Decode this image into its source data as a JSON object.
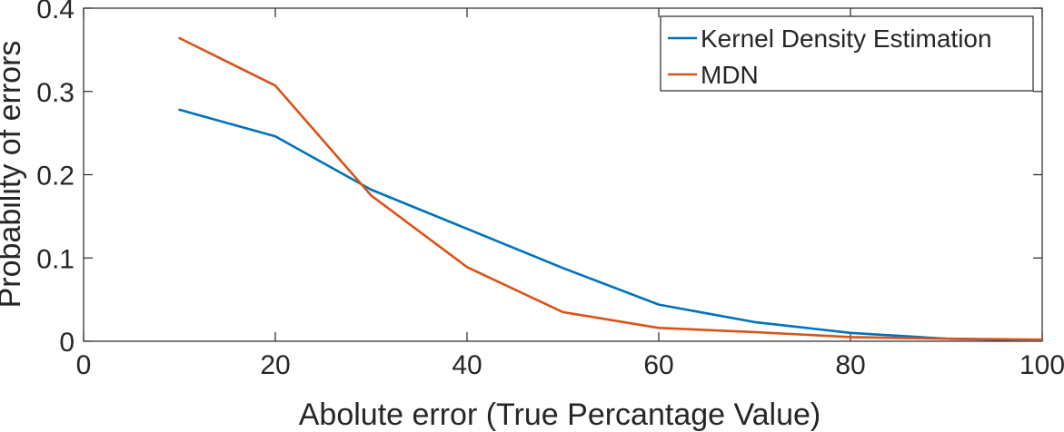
{
  "chart_data": {
    "type": "line",
    "xlabel": "Abolute error (True Percantage Value)",
    "ylabel": "Probability of errors",
    "xlim": [
      0,
      100
    ],
    "ylim": [
      0,
      0.4
    ],
    "xticks": [
      0,
      20,
      40,
      60,
      80,
      100
    ],
    "yticks": [
      0,
      0.1,
      0.2,
      0.3,
      0.4
    ],
    "xtick_labels": [
      "0",
      "20",
      "40",
      "60",
      "80",
      "100"
    ],
    "ytick_labels": [
      "0",
      "0.1",
      "0.2",
      "0.3",
      "0.4"
    ],
    "legend_position": "top-right",
    "grid": false,
    "series": [
      {
        "name": "Kernel Density Estimation",
        "color": "#0072BD",
        "x": [
          10,
          20,
          30,
          40,
          50,
          60,
          70,
          80,
          90,
          100
        ],
        "y": [
          0.278,
          0.246,
          0.182,
          0.135,
          0.088,
          0.044,
          0.023,
          0.01,
          0.003,
          0.001
        ]
      },
      {
        "name": "MDN",
        "color": "#D95319",
        "x": [
          10,
          20,
          30,
          40,
          50,
          60,
          70,
          80,
          90,
          100
        ],
        "y": [
          0.364,
          0.307,
          0.175,
          0.089,
          0.035,
          0.016,
          0.011,
          0.005,
          0.003,
          0.002
        ]
      }
    ]
  }
}
